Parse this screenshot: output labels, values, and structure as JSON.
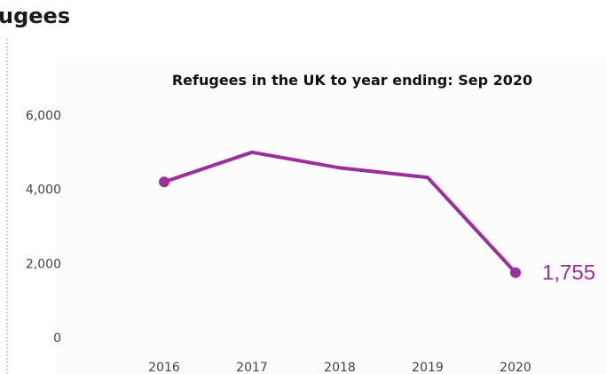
{
  "page": {
    "heading": "ugees"
  },
  "chart_data": {
    "type": "line",
    "title": "Refugees in the UK to year ending:  Sep 2020",
    "xlabel": "",
    "ylabel": "",
    "categories": [
      "2016",
      "2017",
      "2018",
      "2019",
      "2020"
    ],
    "series": [
      {
        "values": [
          4200,
          5000,
          4580,
          4320,
          1755
        ]
      }
    ],
    "ylim": [
      0,
      7000
    ],
    "yticks": [
      0,
      2000,
      4000,
      6000
    ],
    "ytick_labels": [
      "0",
      "2,000",
      "4,000",
      "6,000"
    ],
    "markers_on": [
      "2016",
      "2020"
    ],
    "end_label": "1,755",
    "grid": false,
    "legend": "none",
    "colors": {
      "line": "#9b2f9b",
      "tick_text": "#444444",
      "title_text": "#111111",
      "background": "#ffffff"
    }
  }
}
